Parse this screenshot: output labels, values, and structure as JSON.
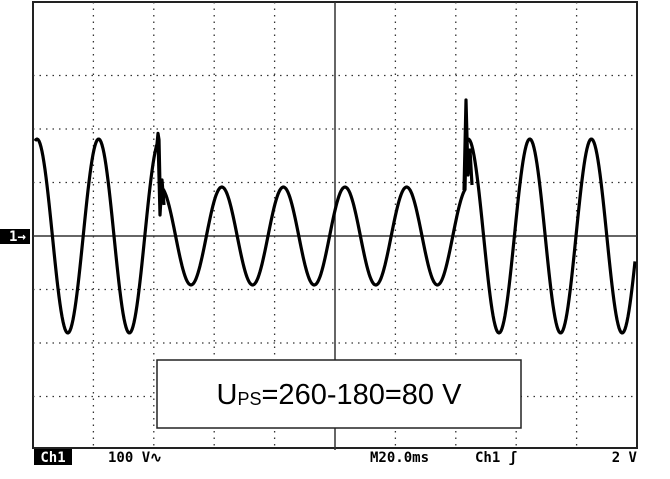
{
  "screen": {
    "channel_marker": "1",
    "annotation": {
      "main": "U",
      "subscript": "PS",
      "rest": "=260-180=80 V"
    },
    "status_bar": {
      "channel": "Ch1",
      "scale": "100 V∿",
      "timebase": "M20.0ms",
      "trigger": "Ch1 ʃ",
      "trigger_level": "2 V"
    }
  }
}
